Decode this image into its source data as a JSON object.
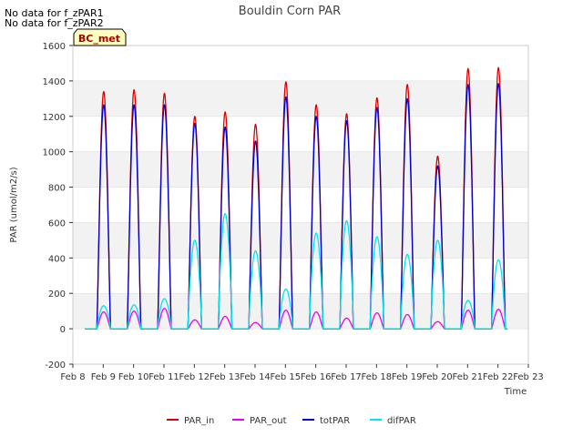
{
  "chart_data": {
    "type": "line",
    "title": "Bouldin Corn PAR",
    "xlabel": "Time",
    "ylabel": "PAR (umol/m2/s)",
    "ylim": [
      -200,
      1600
    ],
    "yticks": [
      -200,
      0,
      200,
      400,
      600,
      800,
      1000,
      1200,
      1400,
      1600
    ],
    "xlim_days": [
      8,
      23
    ],
    "xticks": [
      "Feb 8",
      "Feb 9",
      "Feb 10",
      "Feb 11",
      "Feb 12",
      "Feb 13",
      "Feb 14",
      "Feb 15",
      "Feb 16",
      "Feb 17",
      "Feb 18",
      "Feb 19",
      "Feb 20",
      "Feb 21",
      "Feb 22",
      "Feb 23"
    ],
    "grid": "horizontal bands",
    "legend_placement": "bottom",
    "notes": [
      "No data for f_zPAR1",
      "No data for f_zPAR2"
    ],
    "badge": "BC_met",
    "series": [
      {
        "name": "PAR_in",
        "color": "#dd0000",
        "day_peaks": [
          1340,
          1350,
          1330,
          1200,
          1225,
          1155,
          1395,
          1265,
          1215,
          1305,
          1380,
          975,
          1470,
          1475
        ]
      },
      {
        "name": "PAR_out",
        "color": "#ee00ee",
        "day_peaks": [
          95,
          100,
          115,
          50,
          70,
          35,
          105,
          95,
          60,
          90,
          80,
          40,
          105,
          110
        ]
      },
      {
        "name": "totPAR",
        "color": "#0000cc",
        "day_peaks": [
          1265,
          1265,
          1265,
          1160,
          1140,
          1060,
          1310,
          1200,
          1175,
          1250,
          1300,
          920,
          1380,
          1385
        ]
      },
      {
        "name": "difPAR",
        "color": "#00e5ee",
        "day_peaks": [
          130,
          135,
          170,
          500,
          650,
          440,
          225,
          540,
          610,
          520,
          420,
          500,
          160,
          390
        ]
      }
    ]
  }
}
